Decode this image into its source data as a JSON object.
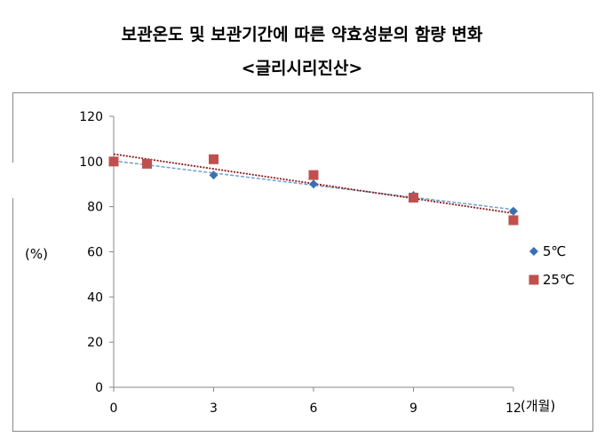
{
  "title": "보관온도 및 보관기간에 따른 약효성분의 함량 변화",
  "subtitle": "<글리시리진산>",
  "chart_data": {
    "type": "scatter",
    "title": "보관온도 및 보관기간에 따른 약효성분의 함량 변화",
    "subtitle": "<글리시리진산>",
    "ylabel": "(%)",
    "xlabel": "(개월)",
    "xlim": [
      0,
      12
    ],
    "ylim": [
      0,
      120
    ],
    "xticks": [
      0,
      3,
      6,
      9,
      12
    ],
    "yticks": [
      0,
      20,
      40,
      60,
      80,
      100,
      120
    ],
    "grid": false,
    "legend_position": "right",
    "trendlines": true,
    "series": [
      {
        "name": "5℃",
        "marker": "diamond",
        "color": "#3a6fb5",
        "trend_color": "#6f9fd8",
        "x": [
          0,
          1,
          3,
          6,
          9,
          12
        ],
        "y": [
          100,
          99,
          94,
          90,
          85,
          78
        ]
      },
      {
        "name": "25℃",
        "marker": "square",
        "color": "#c0504d",
        "trend_color": "#8b1a1a",
        "x": [
          0,
          1,
          3,
          6,
          9,
          12
        ],
        "y": [
          100,
          99,
          101,
          94,
          84,
          74
        ]
      }
    ]
  }
}
